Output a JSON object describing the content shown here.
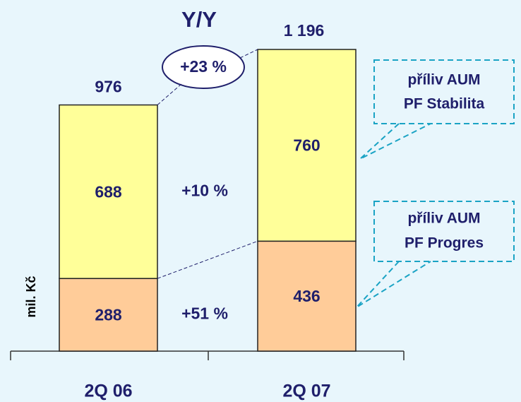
{
  "chart_data": {
    "type": "bar",
    "stacked": true,
    "categories": [
      "2Q 06",
      "2Q 07"
    ],
    "series": [
      {
        "color": "#ffcc99",
        "values": [
          288,
          436
        ]
      },
      {
        "color": "#ffff99",
        "values": [
          688,
          760
        ]
      }
    ],
    "totals": {
      "values": [
        976,
        1196
      ],
      "value_labels": [
        "976",
        "1 196"
      ]
    },
    "y_label": "mil. Kč",
    "yoy_title": "Y/Y",
    "yoy_total": "+23 %",
    "growth": [
      "+51 %",
      "+10 %"
    ],
    "callouts": [
      [
        "příliv AUM",
        "PF Progres"
      ],
      [
        "příliv AUM",
        "PF Stabilita"
      ]
    ]
  }
}
